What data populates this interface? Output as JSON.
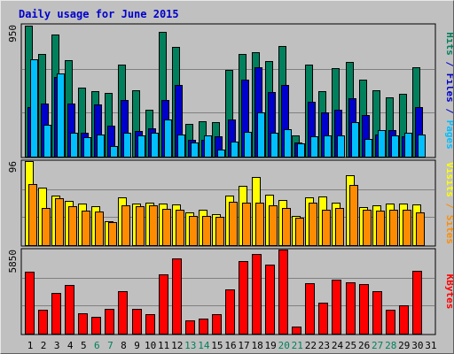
{
  "chart_data": {
    "type": "bar",
    "title": "Daily usage for June 2015",
    "categories": [
      "1",
      "2",
      "3",
      "4",
      "5",
      "6",
      "7",
      "8",
      "9",
      "10",
      "11",
      "12",
      "13",
      "14",
      "15",
      "16",
      "17",
      "18",
      "19",
      "20",
      "21",
      "22",
      "23",
      "24",
      "25",
      "26",
      "27",
      "28",
      "29",
      "30",
      "31"
    ],
    "weekend_days": [
      "6",
      "7",
      "13",
      "14",
      "20",
      "21",
      "27",
      "28"
    ],
    "panels": [
      {
        "name": "top",
        "max_label": "950",
        "ymax": 950,
        "grid_values": [
          316.7,
          633.3
        ],
        "axis_label_parts": [
          {
            "text": "Hits",
            "color": "#00805c"
          },
          {
            "text": " / ",
            "color": "#0000cc"
          },
          {
            "text": "Files",
            "color": "#0000cc"
          },
          {
            "text": " / ",
            "color": "#0000cc"
          },
          {
            "text": "Pages",
            "color": "#00bfff"
          }
        ],
        "series": [
          {
            "name": "Hits",
            "color": "#00805c",
            "values": [
              945,
              740,
              880,
              695,
              500,
              470,
              460,
              665,
              475,
              335,
              900,
              790,
              235,
              255,
              250,
              625,
              740,
              755,
              690,
              795,
              155,
              665,
              470,
              635,
              680,
              555,
              475,
              430,
              450,
              645,
              0
            ]
          },
          {
            "name": "Files",
            "color": "#0000cc",
            "values": [
              360,
              380,
              575,
              380,
              170,
              375,
              220,
              405,
              185,
              205,
              410,
              515,
              120,
              120,
              145,
              270,
              555,
              645,
              465,
              515,
              100,
              395,
              320,
              340,
              420,
              300,
              160,
              190,
              145,
              355,
              0
            ]
          },
          {
            "name": "Pages",
            "color": "#00bfff",
            "values": [
              700,
              230,
              600,
              170,
              140,
              160,
              75,
              175,
              150,
              175,
              270,
              160,
              105,
              150,
              50,
              110,
              180,
              320,
              170,
              200,
              95,
              145,
              155,
              155,
              250,
              125,
              190,
              150,
              170,
              160,
              0
            ]
          }
        ]
      },
      {
        "name": "middle",
        "max_label": "96",
        "ymax": 96,
        "grid_values": [
          32,
          64
        ],
        "axis_label_parts": [
          {
            "text": "Visits",
            "color": "#ffff00"
          },
          {
            "text": " / ",
            "color": "#ff8c00"
          },
          {
            "text": "Sites",
            "color": "#ff8c00"
          }
        ],
        "series": [
          {
            "name": "Visits",
            "color": "#ffff00",
            "values": [
              96,
              66,
              57,
              51,
              47,
              44,
              27,
              55,
              47,
              48,
              47,
              46,
              37,
              40,
              35,
              57,
              68,
              78,
              58,
              52,
              33,
              55,
              56,
              48,
              80,
              43,
              45,
              47,
              47,
              46,
              0
            ]
          },
          {
            "name": "Sites",
            "color": "#ff8c00",
            "values": [
              70,
              42,
              54,
              44,
              39,
              38,
              26,
              45,
              44,
              45,
              41,
              40,
              33,
              33,
              32,
              50,
              48,
              49,
              45,
              42,
              31,
              48,
              40,
              42,
              69,
              40,
              39,
              40,
              40,
              37,
              0
            ]
          }
        ]
      },
      {
        "name": "bottom",
        "max_label": "5850",
        "ymax": 5850,
        "grid_values": [
          1950,
          3900
        ],
        "axis_label_parts": [
          {
            "text": "KBytes",
            "color": "#ff0000"
          }
        ],
        "series": [
          {
            "name": "KBytes",
            "color": "#ff0000",
            "values": [
              4300,
              1650,
              2850,
              3400,
              1400,
              1150,
              1730,
              2950,
              1750,
              1330,
              4100,
              5250,
              900,
              1070,
              1370,
              3050,
              5030,
              5550,
              4810,
              5850,
              480,
              3530,
              2150,
              3740,
              3600,
              3460,
              2980,
              1640,
              1950,
              4400,
              0
            ]
          }
        ]
      }
    ]
  }
}
